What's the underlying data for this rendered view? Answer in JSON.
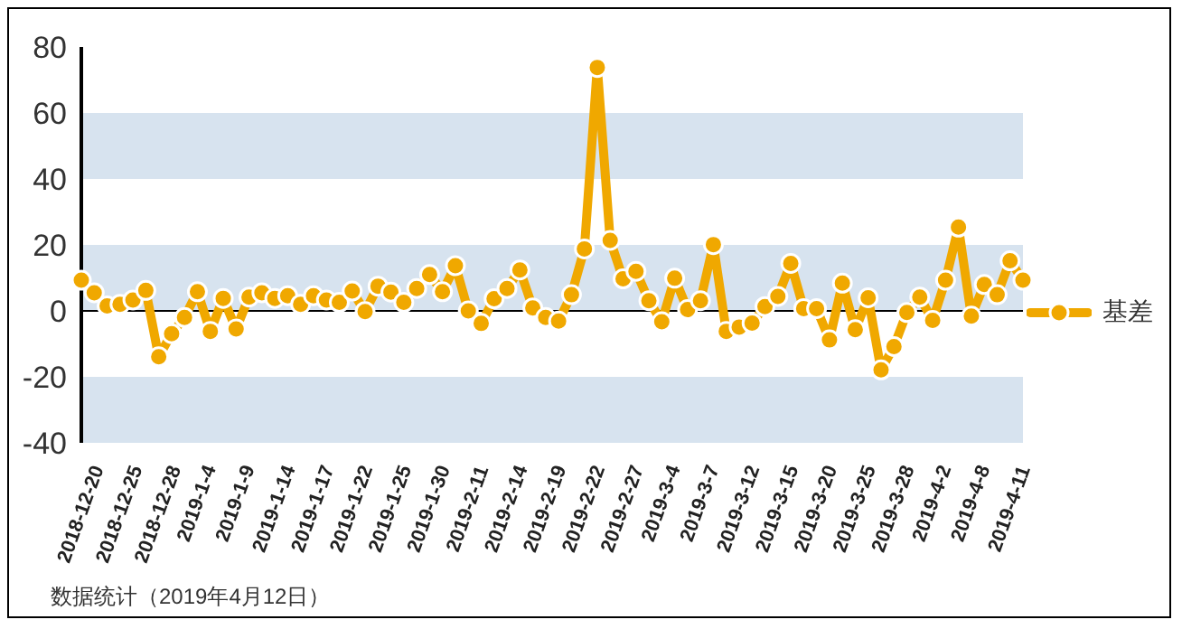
{
  "chart_data": {
    "type": "line",
    "categories": [
      "2018-12-20",
      null,
      null,
      "2018-12-25",
      null,
      null,
      "2018-12-28",
      null,
      null,
      "2019-1-4",
      null,
      null,
      "2019-1-9",
      null,
      null,
      "2019-1-14",
      null,
      null,
      "2019-1-17",
      null,
      null,
      "2019-1-22",
      null,
      null,
      "2019-1-25",
      null,
      null,
      "2019-1-30",
      null,
      null,
      "2019-2-11",
      null,
      null,
      "2019-2-14",
      null,
      null,
      "2019-2-19",
      null,
      null,
      "2019-2-22",
      null,
      null,
      "2019-2-27",
      null,
      null,
      "2019-3-4",
      null,
      null,
      "2019-3-7",
      null,
      null,
      "2019-3-12",
      null,
      null,
      "2019-3-15",
      null,
      null,
      "2019-3-20",
      null,
      null,
      "2019-3-25",
      null,
      null,
      "2019-3-28",
      null,
      null,
      "2019-4-2",
      null,
      null,
      "2019-4-8",
      null,
      null,
      "2019-4-11",
      null
    ],
    "series": [
      {
        "name": "基差",
        "color": "#f0a800",
        "values": [
          9.3,
          5.5,
          1.5,
          2,
          3.3,
          6.2,
          -13.9,
          -6.9,
          -2,
          5.8,
          -6.2,
          3.8,
          -5.5,
          4.2,
          5.5,
          3.8,
          4.6,
          2,
          4.6,
          3.3,
          2.6,
          6,
          -0.2,
          7.5,
          5.7,
          2.6,
          6.8,
          11,
          5.8,
          13.7,
          0,
          -3.8,
          3.7,
          6.8,
          12.4,
          0.9,
          -2,
          -3.1,
          4.9,
          18.8,
          73.8,
          21.4,
          9.7,
          12,
          3.1,
          -3.3,
          9.9,
          0.4,
          3.1,
          20.1,
          -6.2,
          -4.9,
          -3.7,
          1.3,
          4.4,
          14.4,
          0.7,
          0.7,
          -8.8,
          8.4,
          -5.7,
          4,
          -17.9,
          -10.8,
          -0.5,
          4.2,
          -2.9,
          9.3,
          25.4,
          -1.6,
          8,
          4.9,
          15.2,
          9.3
        ]
      }
    ],
    "ylim": [
      -40,
      80
    ],
    "yticks": [
      -40,
      -20,
      0,
      20,
      40,
      60,
      80
    ],
    "bands": [
      {
        "axis": "y",
        "from": 40,
        "to": 60,
        "color": "#d7e3ef"
      },
      {
        "axis": "y",
        "from": 0,
        "to": 20,
        "color": "#d7e3ef"
      },
      {
        "axis": "y",
        "from": -40,
        "to": -20,
        "color": "#d7e3ef"
      }
    ],
    "ref_lines": [
      {
        "axis": "y",
        "value": 0,
        "color": "#000000"
      }
    ],
    "marker": "circle",
    "legend": "right",
    "annotations": [
      "数据统计（2019年4月12日）"
    ]
  }
}
